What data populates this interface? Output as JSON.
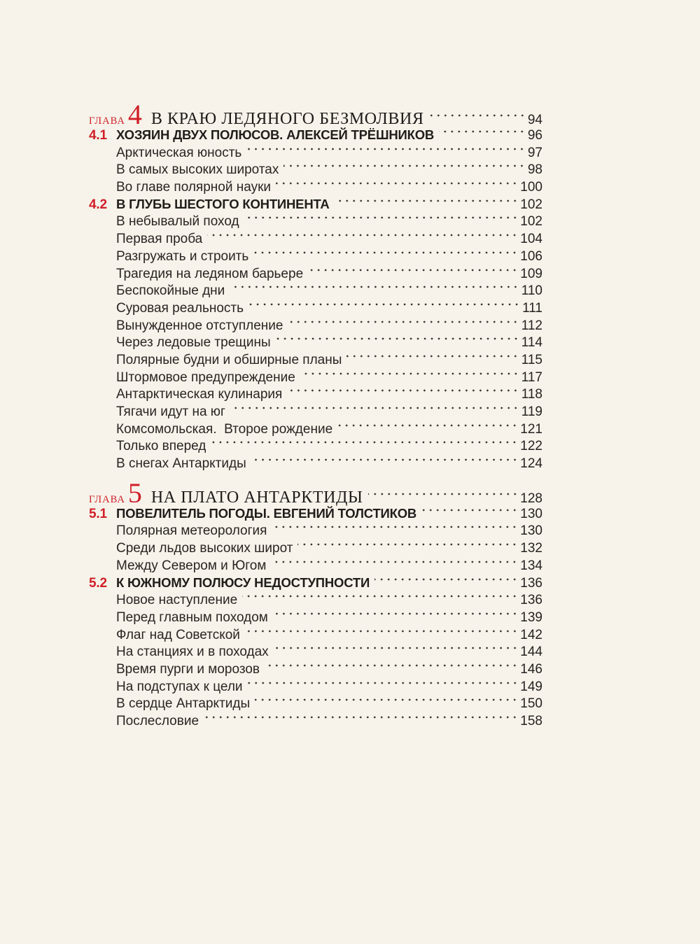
{
  "colors": {
    "background": "#f7f3ea",
    "text": "#2a2522",
    "accent_red": "#d01f28",
    "dot_leader": "#35302c"
  },
  "toc": {
    "entries": [
      {
        "type": "chapter",
        "label": "ГЛАВА",
        "number": "4",
        "title": "В КРАЮ ЛЕДЯНОГО БЕЗМОЛВИЯ",
        "page": "94"
      },
      {
        "type": "section",
        "number": "4.1",
        "title": "ХОЗЯИН ДВУХ ПОЛЮСОВ. АЛЕКСЕЙ ТРЁШНИКОВ",
        "page": "96"
      },
      {
        "type": "item",
        "title": "Арктическая юность",
        "page": "97"
      },
      {
        "type": "item",
        "title": "В самых высоких широтах",
        "page": "98"
      },
      {
        "type": "item",
        "title": "Во главе полярной науки",
        "page": "100"
      },
      {
        "type": "section",
        "number": "4.2",
        "title": "В ГЛУБЬ ШЕСТОГО КОНТИНЕНТА",
        "page": "102"
      },
      {
        "type": "item",
        "title": "В небывалый поход",
        "page": "102"
      },
      {
        "type": "item",
        "title": "Первая проба",
        "page": "104"
      },
      {
        "type": "item",
        "title": "Разгружать и строить",
        "page": "106"
      },
      {
        "type": "item",
        "title": "Трагедия на ледяном барьере",
        "page": "109"
      },
      {
        "type": "item",
        "title": "Беспокойные дни",
        "page": "110"
      },
      {
        "type": "item",
        "title": "Суровая реальность",
        "page": "111"
      },
      {
        "type": "item",
        "title": "Вынужденное отступление",
        "page": "112"
      },
      {
        "type": "item",
        "title": "Через ледовые трещины",
        "page": "114"
      },
      {
        "type": "item",
        "title": "Полярные будни и обширные планы",
        "page": "115"
      },
      {
        "type": "item",
        "title": "Штормовое предупреждение",
        "page": "117"
      },
      {
        "type": "item",
        "title": "Антарктическая кулинария",
        "page": "118"
      },
      {
        "type": "item",
        "title": "Тягачи идут на юг",
        "page": "119"
      },
      {
        "type": "item",
        "title": "Комсомольская.  Второе рождение",
        "page": "121"
      },
      {
        "type": "item",
        "title": "Только вперед",
        "page": "122"
      },
      {
        "type": "item",
        "title": "В снегах Антарктиды",
        "page": "124"
      },
      {
        "type": "chapter",
        "label": "ГЛАВА",
        "number": "5",
        "title": "НА ПЛАТО АНТАРКТИДЫ",
        "page": "128"
      },
      {
        "type": "section",
        "number": "5.1",
        "title": "ПОВЕЛИТЕЛЬ ПОГОДЫ. ЕВГЕНИЙ ТОЛСТИКОВ",
        "page": "130"
      },
      {
        "type": "item",
        "title": "Полярная метеорология",
        "page": "130"
      },
      {
        "type": "item",
        "title": "Среди льдов высоких широт",
        "page": "132"
      },
      {
        "type": "item",
        "title": "Между Севером и Югом",
        "page": "134"
      },
      {
        "type": "section",
        "number": "5.2",
        "title": "К ЮЖНОМУ ПОЛЮСУ НЕДОСТУПНОСТИ",
        "page": "136"
      },
      {
        "type": "item",
        "title": "Новое наступление",
        "page": "136"
      },
      {
        "type": "item",
        "title": "Перед главным походом",
        "page": "139"
      },
      {
        "type": "item",
        "title": "Флаг над Советской",
        "page": "142"
      },
      {
        "type": "item",
        "title": "На станциях и в походах",
        "page": "144"
      },
      {
        "type": "item",
        "title": "Время пурги и морозов",
        "page": "146"
      },
      {
        "type": "item",
        "title": "На подступах к цели",
        "page": "149"
      },
      {
        "type": "item",
        "title": "В сердце Антарктиды",
        "page": "150"
      },
      {
        "type": "item",
        "title": "Послесловие",
        "page": "158"
      }
    ]
  }
}
